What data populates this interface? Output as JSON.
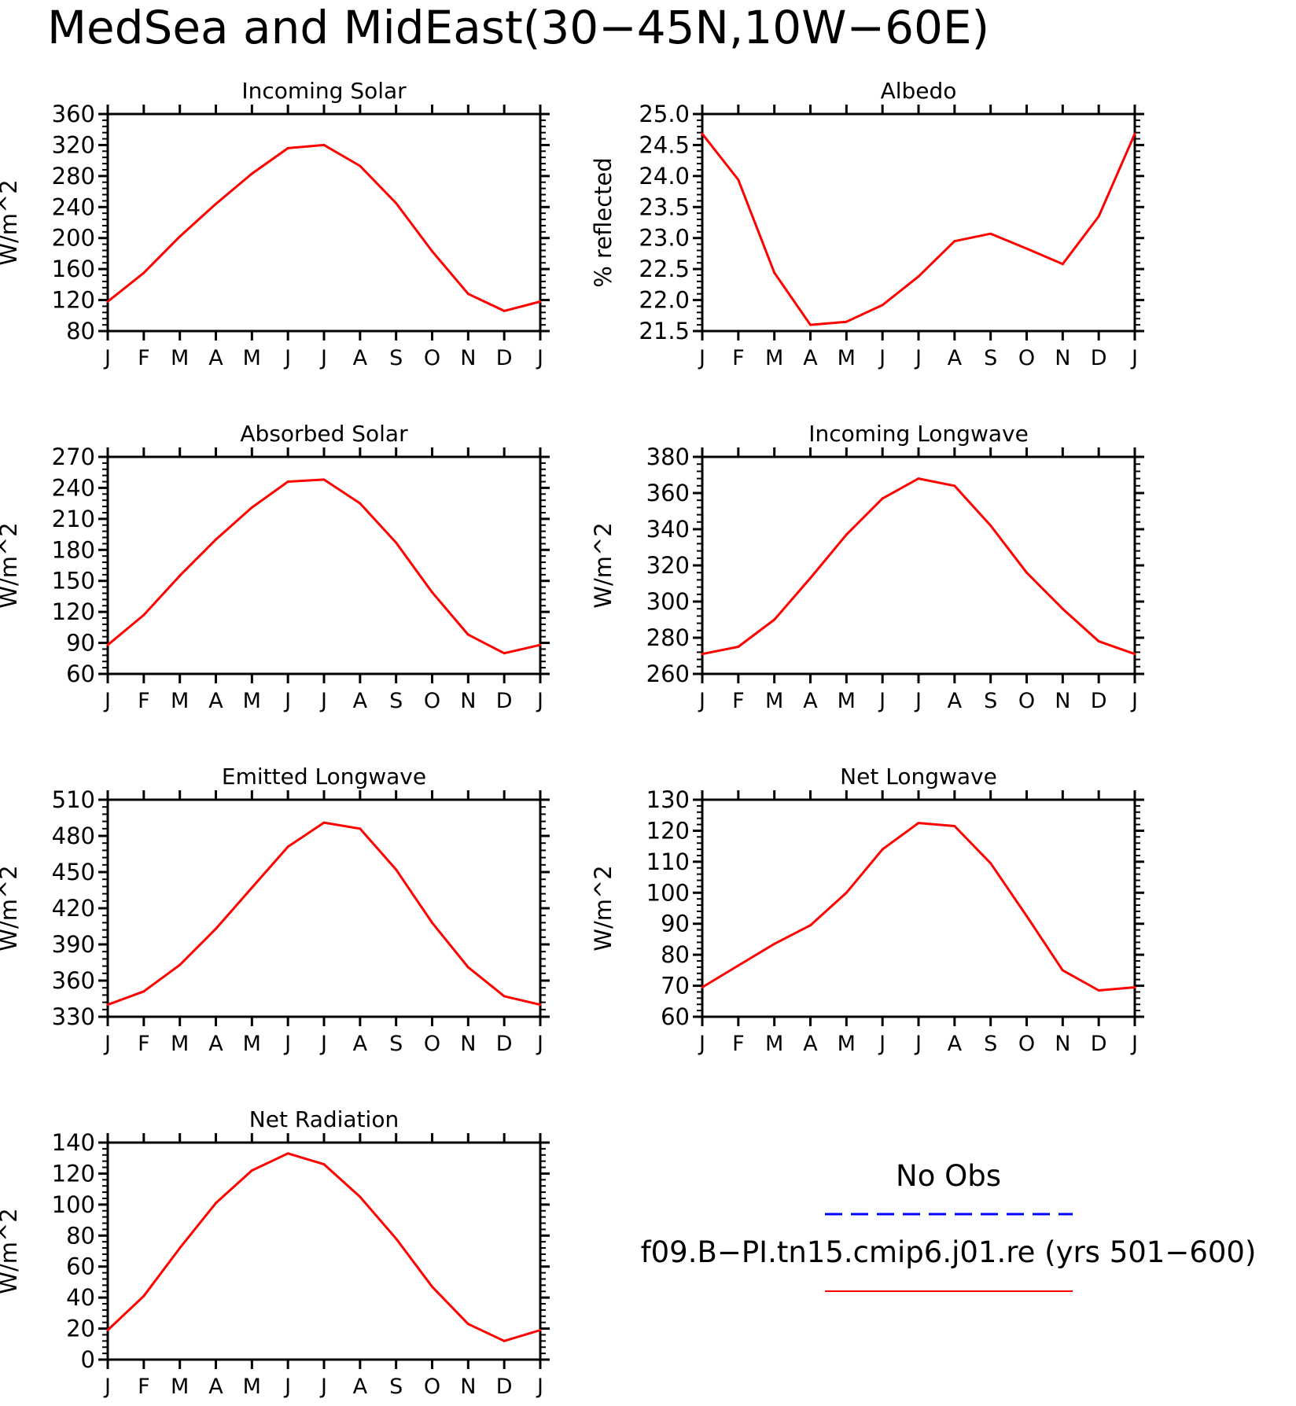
{
  "title": "MedSea and MidEast(30−45N,10W−60E)",
  "months": [
    "J",
    "F",
    "M",
    "A",
    "M",
    "J",
    "J",
    "A",
    "S",
    "O",
    "N",
    "D",
    "J"
  ],
  "colors": {
    "model": "#ff0000",
    "obs": "#0000ff",
    "axis": "#000000"
  },
  "legend": {
    "obs_label": "No Obs",
    "model_label": "f09.B−PI.tn15.cmip6.j01.re (yrs 501−600)"
  },
  "chart_data": [
    {
      "type": "line",
      "title": "Incoming Solar",
      "ylabel": "W/m^2",
      "ylim": [
        80,
        360
      ],
      "yticks": [
        80,
        120,
        160,
        200,
        240,
        280,
        320,
        360
      ],
      "ytick_labels": [
        "80",
        "120",
        "160",
        "200",
        "240",
        "280",
        "320",
        "360"
      ],
      "categories": [
        "J",
        "F",
        "M",
        "A",
        "M",
        "J",
        "J",
        "A",
        "S",
        "O",
        "N",
        "D",
        "J"
      ],
      "series": [
        {
          "values": [
            118,
            155,
            202,
            244,
            283,
            316,
            320,
            293,
            245,
            183,
            128,
            106,
            118
          ]
        }
      ]
    },
    {
      "type": "line",
      "title": "Albedo",
      "ylabel": "% reflected",
      "ylim": [
        21.5,
        25.0
      ],
      "yticks": [
        21.5,
        22.0,
        22.5,
        23.0,
        23.5,
        24.0,
        24.5,
        25.0
      ],
      "ytick_labels": [
        "21.5",
        "22.0",
        "22.5",
        "23.0",
        "23.5",
        "24.0",
        "24.5",
        "25.0"
      ],
      "categories": [
        "J",
        "F",
        "M",
        "A",
        "M",
        "J",
        "J",
        "A",
        "S",
        "O",
        "N",
        "D",
        "J"
      ],
      "series": [
        {
          "values": [
            24.68,
            23.94,
            22.44,
            21.6,
            21.65,
            21.92,
            22.38,
            22.95,
            23.07,
            22.83,
            22.58,
            23.35,
            24.68
          ]
        }
      ]
    },
    {
      "type": "line",
      "title": "Absorbed Solar",
      "ylabel": "W/m^2",
      "ylim": [
        60,
        270
      ],
      "yticks": [
        60,
        90,
        120,
        150,
        180,
        210,
        240,
        270
      ],
      "ytick_labels": [
        "60",
        "90",
        "120",
        "150",
        "180",
        "210",
        "240",
        "270"
      ],
      "categories": [
        "J",
        "F",
        "M",
        "A",
        "M",
        "J",
        "J",
        "A",
        "S",
        "O",
        "N",
        "D",
        "J"
      ],
      "series": [
        {
          "values": [
            88,
            117,
            155,
            190,
            221,
            246,
            248,
            225,
            187,
            139,
            98,
            80,
            88
          ]
        }
      ]
    },
    {
      "type": "line",
      "title": "Incoming Longwave",
      "ylabel": "W/m^2",
      "ylim": [
        260,
        380
      ],
      "yticks": [
        260,
        280,
        300,
        320,
        340,
        360,
        380
      ],
      "ytick_labels": [
        "260",
        "280",
        "300",
        "320",
        "340",
        "360",
        "380"
      ],
      "categories": [
        "J",
        "F",
        "M",
        "A",
        "M",
        "J",
        "J",
        "A",
        "S",
        "O",
        "N",
        "D",
        "J"
      ],
      "series": [
        {
          "values": [
            271,
            275,
            290,
            313,
            337,
            357,
            368,
            364,
            342,
            316,
            296,
            278,
            271
          ]
        }
      ]
    },
    {
      "type": "line",
      "title": "Emitted Longwave",
      "ylabel": "W/m^2",
      "ylim": [
        330,
        510
      ],
      "yticks": [
        330,
        360,
        390,
        420,
        450,
        480,
        510
      ],
      "ytick_labels": [
        "330",
        "360",
        "390",
        "420",
        "450",
        "480",
        "510"
      ],
      "categories": [
        "J",
        "F",
        "M",
        "A",
        "M",
        "J",
        "J",
        "A",
        "S",
        "O",
        "N",
        "D",
        "J"
      ],
      "series": [
        {
          "values": [
            340,
            351,
            373,
            403,
            437,
            471,
            491,
            486,
            452,
            408,
            371,
            347,
            340
          ]
        }
      ]
    },
    {
      "type": "line",
      "title": "Net Longwave",
      "ylabel": "W/m^2",
      "ylim": [
        60,
        130
      ],
      "yticks": [
        60,
        70,
        80,
        90,
        100,
        110,
        120,
        130
      ],
      "ytick_labels": [
        "60",
        "70",
        "80",
        "90",
        "100",
        "110",
        "120",
        "130"
      ],
      "categories": [
        "J",
        "F",
        "M",
        "A",
        "M",
        "J",
        "J",
        "A",
        "S",
        "O",
        "N",
        "D",
        "J"
      ],
      "series": [
        {
          "values": [
            69.5,
            76.5,
            83.5,
            89.5,
            100,
            114,
            122.5,
            121.5,
            109.5,
            92.5,
            75,
            68.5,
            69.5
          ]
        }
      ]
    },
    {
      "type": "line",
      "title": "Net Radiation",
      "ylabel": "W/m^2",
      "ylim": [
        0,
        140
      ],
      "yticks": [
        0,
        20,
        40,
        60,
        80,
        100,
        120,
        140
      ],
      "ytick_labels": [
        "0",
        "20",
        "40",
        "60",
        "80",
        "100",
        "120",
        "140"
      ],
      "categories": [
        "J",
        "F",
        "M",
        "A",
        "M",
        "J",
        "J",
        "A",
        "S",
        "O",
        "N",
        "D",
        "J"
      ],
      "series": [
        {
          "values": [
            19,
            41,
            72,
            101,
            122,
            133,
            126,
            105,
            78,
            47,
            23,
            12,
            19
          ]
        }
      ]
    }
  ]
}
